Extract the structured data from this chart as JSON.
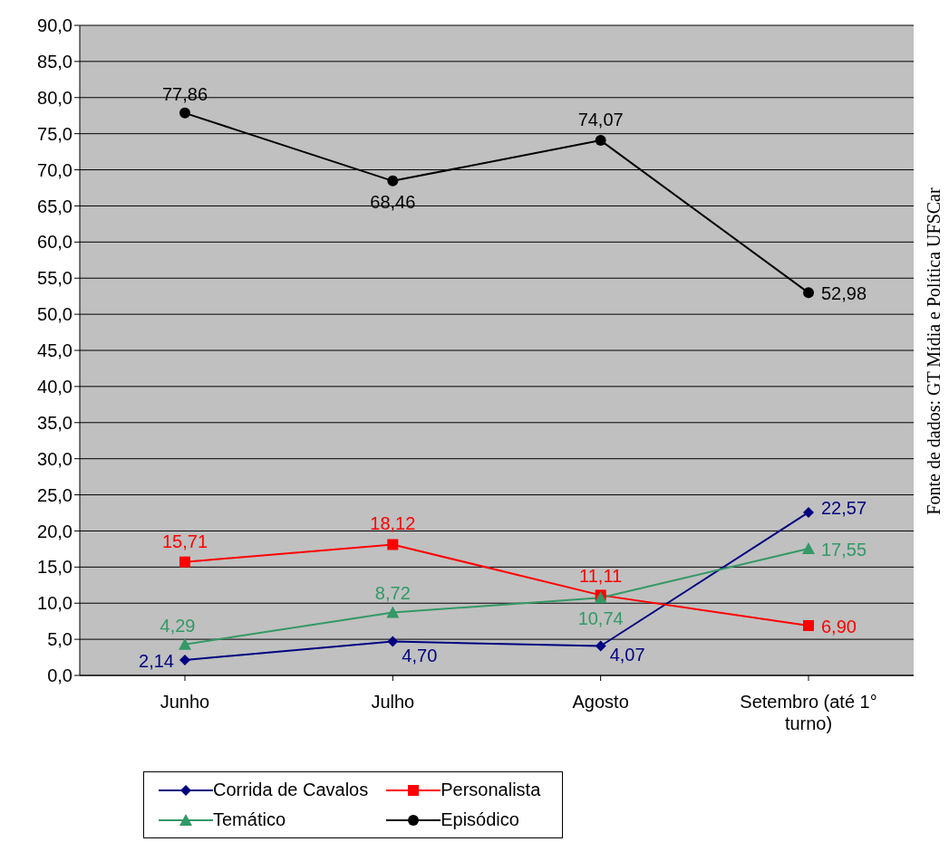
{
  "chart_data": {
    "type": "line",
    "categories": [
      "Junho",
      "Julho",
      "Agosto",
      "Setembro (até 1° turno)"
    ],
    "series": [
      {
        "name": "Corrida de Cavalos",
        "color": "#000080",
        "marker": "diamond",
        "values": [
          2.14,
          4.7,
          4.07,
          22.57
        ],
        "value_labels": [
          "2,14",
          "4,70",
          "4,07",
          "22,57"
        ]
      },
      {
        "name": "Personalista",
        "color": "#ff0000",
        "marker": "square",
        "values": [
          15.71,
          18.12,
          11.11,
          6.9
        ],
        "value_labels": [
          "15,71",
          "18,12",
          "11,11",
          "6,90"
        ]
      },
      {
        "name": "Temático",
        "color": "#339966",
        "marker": "triangle",
        "values": [
          4.29,
          8.72,
          10.74,
          17.55
        ],
        "value_labels": [
          "4,29",
          "8,72",
          "10,74",
          "17,55"
        ]
      },
      {
        "name": "Episódico",
        "color": "#000000",
        "marker": "circle",
        "values": [
          77.86,
          68.46,
          74.07,
          52.98
        ],
        "value_labels": [
          "77,86",
          "68,46",
          "74,07",
          "52,98"
        ]
      }
    ],
    "ylim": [
      0,
      90
    ],
    "yticks": [
      {
        "value": 0,
        "label": "0,0"
      },
      {
        "value": 5,
        "label": "5,0"
      },
      {
        "value": 10,
        "label": "10,0"
      },
      {
        "value": 15,
        "label": "15,0"
      },
      {
        "value": 20,
        "label": "20,0"
      },
      {
        "value": 25,
        "label": "25,0"
      },
      {
        "value": 30,
        "label": "30,0"
      },
      {
        "value": 35,
        "label": "35,0"
      },
      {
        "value": 40,
        "label": "40,0"
      },
      {
        "value": 45,
        "label": "45,0"
      },
      {
        "value": 50,
        "label": "50,0"
      },
      {
        "value": 55,
        "label": "55,0"
      },
      {
        "value": 60,
        "label": "60,0"
      },
      {
        "value": 65,
        "label": "65,0"
      },
      {
        "value": 70,
        "label": "70,0"
      },
      {
        "value": 75,
        "label": "75,0"
      },
      {
        "value": 80,
        "label": "80,0"
      },
      {
        "value": 85,
        "label": "85,0"
      },
      {
        "value": 90,
        "label": "90,0"
      }
    ],
    "grid": "y",
    "legend": "bottom",
    "line_style": "solid",
    "annotations": [
      "Fonte de dados: GT Mídia e Política UFSCar"
    ]
  }
}
